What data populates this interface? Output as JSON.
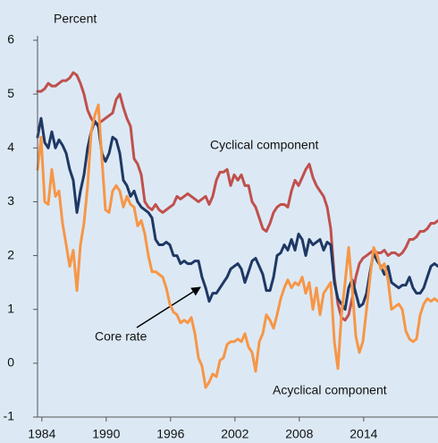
{
  "chart_data": {
    "type": "line",
    "y_label": "Percent",
    "x": [
      1983.6,
      1983.93,
      1984.27,
      1984.6,
      1984.93,
      1985.27,
      1985.6,
      1985.93,
      1986.27,
      1986.6,
      1986.93,
      1987.27,
      1987.6,
      1987.93,
      1988.27,
      1988.6,
      1988.93,
      1989.27,
      1989.6,
      1989.93,
      1990.27,
      1990.6,
      1990.93,
      1991.27,
      1991.6,
      1991.93,
      1992.27,
      1992.6,
      1992.93,
      1993.27,
      1993.6,
      1993.93,
      1994.27,
      1994.6,
      1994.93,
      1995.27,
      1995.6,
      1995.93,
      1996.27,
      1996.6,
      1996.93,
      1997.27,
      1997.6,
      1997.93,
      1998.27,
      1998.6,
      1998.93,
      1999.27,
      1999.6,
      1999.93,
      2000.27,
      2000.6,
      2000.93,
      2001.27,
      2001.6,
      2001.93,
      2002.27,
      2002.6,
      2002.93,
      2003.27,
      2003.6,
      2003.93,
      2004.27,
      2004.6,
      2004.93,
      2005.27,
      2005.6,
      2005.93,
      2006.27,
      2006.6,
      2006.93,
      2007.27,
      2007.6,
      2007.93,
      2008.27,
      2008.6,
      2008.93,
      2009.27,
      2009.6,
      2009.93,
      2010.27,
      2010.6,
      2010.93,
      2011.27,
      2011.6,
      2011.93,
      2012.27,
      2012.6,
      2012.93,
      2013.27,
      2013.6,
      2013.93,
      2014.27,
      2014.6,
      2014.93,
      2015.27,
      2015.6,
      2015.93,
      2016.27,
      2016.6,
      2016.93,
      2017.27,
      2017.6,
      2017.93,
      2018.27,
      2018.6,
      2018.93,
      2019.27,
      2019.6,
      2019.93,
      2020.27,
      2020.6,
      2020.93
    ],
    "series": [
      {
        "name": "Cyclical component",
        "color": "#c0504d",
        "values": [
          5.05,
          5.05,
          5.1,
          5.2,
          5.15,
          5.15,
          5.2,
          5.25,
          5.25,
          5.3,
          5.4,
          5.35,
          5.2,
          5.0,
          4.7,
          4.55,
          4.45,
          4.45,
          4.5,
          4.55,
          4.6,
          4.65,
          4.9,
          5.0,
          4.75,
          4.55,
          4.4,
          3.8,
          3.7,
          3.5,
          3.0,
          2.9,
          2.85,
          2.95,
          2.85,
          2.8,
          2.85,
          2.9,
          2.95,
          3.1,
          3.05,
          3.1,
          3.15,
          3.1,
          3.05,
          3.0,
          3.05,
          3.1,
          2.95,
          3.1,
          3.4,
          3.55,
          3.55,
          3.6,
          3.3,
          3.5,
          3.4,
          3.5,
          3.3,
          3.3,
          3.0,
          2.9,
          2.7,
          2.5,
          2.45,
          2.6,
          2.8,
          2.9,
          2.95,
          2.95,
          2.9,
          3.2,
          3.4,
          3.3,
          3.45,
          3.6,
          3.7,
          3.45,
          3.3,
          3.2,
          3.1,
          2.9,
          2.5,
          1.6,
          1.1,
          0.85,
          0.8,
          0.9,
          1.2,
          1.6,
          1.85,
          1.95,
          2.0,
          2.05,
          2.1,
          2.05,
          2.05,
          2.1,
          2.0,
          2.05,
          2.05,
          2.0,
          2.05,
          2.15,
          2.3,
          2.3,
          2.35,
          2.45,
          2.45,
          2.5,
          2.6,
          2.6,
          2.65
        ]
      },
      {
        "name": "Core rate",
        "color": "#1f3864",
        "values": [
          4.2,
          4.55,
          4.1,
          4.0,
          4.3,
          4.0,
          4.15,
          4.05,
          3.9,
          3.6,
          3.4,
          2.8,
          3.2,
          3.5,
          4.0,
          4.3,
          4.5,
          4.4,
          3.9,
          3.75,
          3.9,
          4.2,
          4.15,
          3.9,
          3.4,
          3.3,
          3.1,
          3.2,
          3.0,
          2.9,
          2.85,
          2.8,
          2.7,
          2.3,
          2.2,
          2.2,
          2.25,
          2.2,
          2.0,
          2.0,
          1.85,
          1.9,
          1.85,
          1.85,
          1.9,
          1.9,
          1.6,
          1.4,
          1.15,
          1.3,
          1.3,
          1.4,
          1.5,
          1.6,
          1.75,
          1.8,
          1.85,
          1.75,
          1.5,
          1.7,
          1.9,
          1.95,
          1.8,
          1.65,
          1.35,
          1.35,
          1.6,
          2.0,
          2.05,
          2.2,
          2.1,
          2.3,
          2.1,
          2.4,
          2.3,
          2.0,
          2.3,
          2.2,
          2.25,
          2.3,
          2.1,
          2.25,
          2.2,
          1.5,
          1.2,
          1.1,
          1.0,
          1.4,
          1.55,
          1.3,
          1.05,
          1.1,
          1.3,
          1.7,
          2.05,
          1.9,
          1.8,
          1.65,
          1.8,
          1.5,
          1.45,
          1.4,
          1.45,
          1.45,
          1.6,
          1.4,
          1.3,
          1.3,
          1.4,
          1.6,
          1.8,
          1.85,
          1.8
        ]
      },
      {
        "name": "Acyclical component",
        "color": "#f79646",
        "values": [
          3.6,
          4.2,
          3.0,
          2.95,
          3.6,
          3.1,
          3.2,
          2.6,
          2.2,
          1.8,
          2.1,
          1.35,
          2.2,
          2.6,
          3.3,
          4.3,
          4.6,
          4.8,
          3.8,
          2.85,
          2.8,
          3.2,
          3.3,
          3.2,
          2.9,
          3.1,
          2.95,
          2.9,
          2.55,
          2.65,
          2.4,
          2.0,
          1.7,
          1.7,
          1.65,
          1.6,
          1.4,
          1.1,
          0.95,
          0.9,
          0.75,
          0.8,
          0.75,
          0.85,
          0.55,
          0.1,
          -0.05,
          -0.45,
          -0.35,
          -0.2,
          -0.25,
          0.05,
          0.1,
          0.35,
          0.4,
          0.4,
          0.45,
          0.4,
          0.55,
          0.3,
          0.2,
          -0.15,
          0.4,
          0.55,
          0.9,
          0.8,
          0.65,
          0.9,
          1.2,
          1.4,
          1.55,
          1.4,
          1.5,
          1.45,
          1.6,
          1.3,
          1.5,
          1.0,
          1.4,
          0.9,
          1.3,
          1.4,
          1.5,
          0.4,
          -0.1,
          0.9,
          1.5,
          2.15,
          1.4,
          0.5,
          0.2,
          0.4,
          1.0,
          1.6,
          2.15,
          2.0,
          1.75,
          1.85,
          1.55,
          1.0,
          1.05,
          1.1,
          1.0,
          0.6,
          0.45,
          0.4,
          0.45,
          0.9,
          1.1,
          1.2,
          1.15,
          1.2,
          1.15
        ]
      }
    ],
    "xlim": [
      1983.6,
      2020.93
    ],
    "xticks": [
      1984,
      1990,
      1996,
      2002,
      2008,
      2014
    ],
    "ylim": [
      -1,
      6
    ],
    "yticks": [
      -1,
      0,
      1,
      2,
      3,
      4,
      5,
      6
    ],
    "grid": false
  }
}
